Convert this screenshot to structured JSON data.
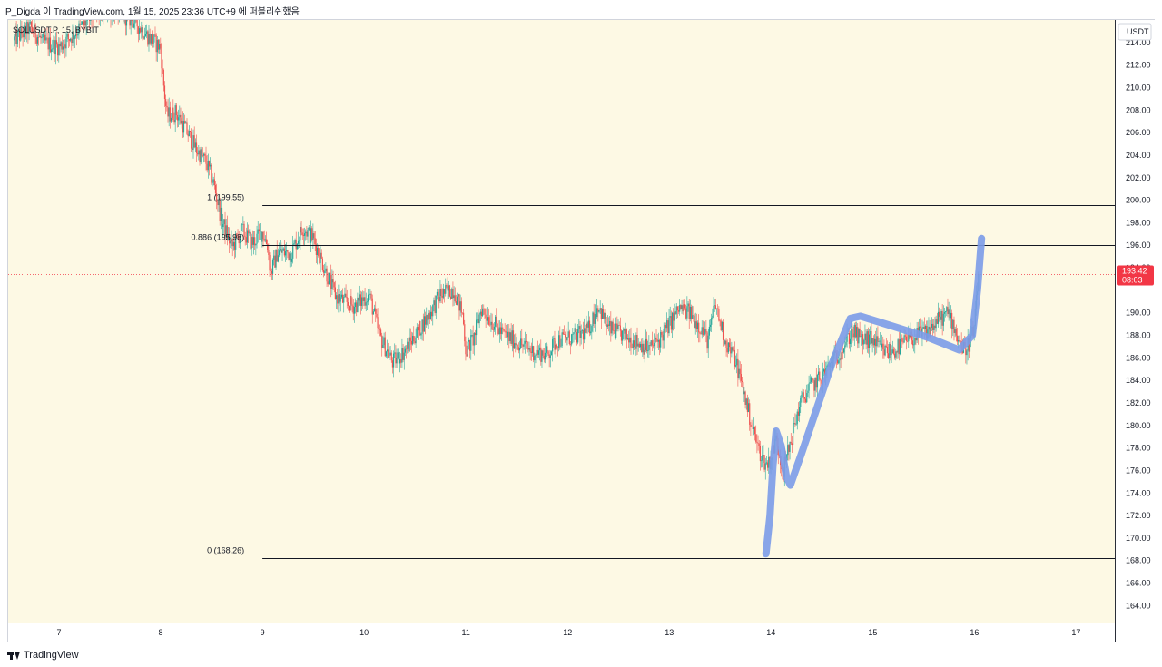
{
  "header": {
    "publish_line": "P_Digda 이 TradingView.com, 1월 15, 2025 23:36 UTC+9 에 퍼블리쉬했음"
  },
  "footer": {
    "brand": "TradingView"
  },
  "colors": {
    "background": "#fdf9e4",
    "up": "#26a69a",
    "down": "#ef5350",
    "wick": "#2a2e39",
    "fib_line": "#131722",
    "current_price": "#f23645",
    "drawing": "#7b9be8"
  },
  "chart_data": {
    "type": "candlestick",
    "symbol_label": "SOLUSDT.P, 15, BYBIT",
    "currency": "USDT",
    "ylim": [
      162.5,
      216
    ],
    "xlim": [
      6.5,
      17.38
    ],
    "x_ticks": [
      {
        "x": 7,
        "label": "7"
      },
      {
        "x": 8,
        "label": "8"
      },
      {
        "x": 9,
        "label": "9"
      },
      {
        "x": 10,
        "label": "10"
      },
      {
        "x": 11,
        "label": "11"
      },
      {
        "x": 12,
        "label": "12"
      },
      {
        "x": 13,
        "label": "13"
      },
      {
        "x": 14,
        "label": "14"
      },
      {
        "x": 15,
        "label": "15"
      },
      {
        "x": 16,
        "label": "16"
      },
      {
        "x": 17,
        "label": "17"
      }
    ],
    "y_ticks": [
      {
        "v": 214,
        "label": "214.00"
      },
      {
        "v": 212,
        "label": "212.00"
      },
      {
        "v": 210,
        "label": "210.00"
      },
      {
        "v": 208,
        "label": "208.00"
      },
      {
        "v": 206,
        "label": "206.00"
      },
      {
        "v": 204,
        "label": "204.00"
      },
      {
        "v": 202,
        "label": "202.00"
      },
      {
        "v": 200,
        "label": "200.00"
      },
      {
        "v": 198,
        "label": "198.00"
      },
      {
        "v": 196,
        "label": "196.00"
      },
      {
        "v": 194,
        "label": "194.00"
      },
      {
        "v": 190,
        "label": "190.00"
      },
      {
        "v": 188,
        "label": "188.00"
      },
      {
        "v": 186,
        "label": "186.00"
      },
      {
        "v": 184,
        "label": "184.00"
      },
      {
        "v": 182,
        "label": "182.00"
      },
      {
        "v": 180,
        "label": "180.00"
      },
      {
        "v": 178,
        "label": "178.00"
      },
      {
        "v": 176,
        "label": "176.00"
      },
      {
        "v": 174,
        "label": "174.00"
      },
      {
        "v": 172,
        "label": "172.00"
      },
      {
        "v": 170,
        "label": "170.00"
      },
      {
        "v": 168,
        "label": "168.00"
      },
      {
        "v": 166,
        "label": "166.00"
      },
      {
        "v": 164,
        "label": "164.00"
      }
    ],
    "fib_levels": [
      {
        "price": 199.55,
        "label": "1 (199.55)",
        "x_start": 9.0
      },
      {
        "price": 195.98,
        "label": "0.886 (195.98)",
        "x_start": 9.0
      },
      {
        "price": 168.26,
        "label": "0 (168.26)",
        "x_start": 9.0
      }
    ],
    "current_price": {
      "price": 193.42,
      "label": "193.42",
      "countdown": "08:03"
    },
    "price_path": [
      [
        6.55,
        214.2
      ],
      [
        6.72,
        215.3
      ],
      [
        6.85,
        214.0
      ],
      [
        7.0,
        213.6
      ],
      [
        7.15,
        214.8
      ],
      [
        7.35,
        216.5
      ],
      [
        7.55,
        216.8
      ],
      [
        7.75,
        215.8
      ],
      [
        7.88,
        214.5
      ],
      [
        8.0,
        213.5
      ],
      [
        8.02,
        211.0
      ],
      [
        8.06,
        207.5
      ],
      [
        8.15,
        207.8
      ],
      [
        8.25,
        206.2
      ],
      [
        8.35,
        204.5
      ],
      [
        8.45,
        203.3
      ],
      [
        8.52,
        201.5
      ],
      [
        8.6,
        198.2
      ],
      [
        8.7,
        195.8
      ],
      [
        8.8,
        197.3
      ],
      [
        8.9,
        196.2
      ],
      [
        9.0,
        197.2
      ],
      [
        9.05,
        196.0
      ],
      [
        9.08,
        193.5
      ],
      [
        9.15,
        195.4
      ],
      [
        9.28,
        195.3
      ],
      [
        9.4,
        197.6
      ],
      [
        9.5,
        196.6
      ],
      [
        9.6,
        194.2
      ],
      [
        9.72,
        191.5
      ],
      [
        9.8,
        191.0
      ],
      [
        9.9,
        190.6
      ],
      [
        10.05,
        191.6
      ],
      [
        10.15,
        188.0
      ],
      [
        10.28,
        185.6
      ],
      [
        10.4,
        186.6
      ],
      [
        10.5,
        188.0
      ],
      [
        10.62,
        189.6
      ],
      [
        10.75,
        191.6
      ],
      [
        10.88,
        192.1
      ],
      [
        10.97,
        189.8
      ],
      [
        11.0,
        186.6
      ],
      [
        11.08,
        187.8
      ],
      [
        11.15,
        190.4
      ],
      [
        11.25,
        189.3
      ],
      [
        11.35,
        188.2
      ],
      [
        11.5,
        187.4
      ],
      [
        11.65,
        186.6
      ],
      [
        11.8,
        186.3
      ],
      [
        11.9,
        187.6
      ],
      [
        12.05,
        187.8
      ],
      [
        12.2,
        188.4
      ],
      [
        12.3,
        190.7
      ],
      [
        12.4,
        188.6
      ],
      [
        12.55,
        188.0
      ],
      [
        12.7,
        187.3
      ],
      [
        12.8,
        186.8
      ],
      [
        12.9,
        187.6
      ],
      [
        13.0,
        189.0
      ],
      [
        13.1,
        190.4
      ],
      [
        13.2,
        190.0
      ],
      [
        13.3,
        188.8
      ],
      [
        13.38,
        187.5
      ],
      [
        13.45,
        190.8
      ],
      [
        13.55,
        187.5
      ],
      [
        13.65,
        185.8
      ],
      [
        13.72,
        183.4
      ],
      [
        13.8,
        180.4
      ],
      [
        13.88,
        177.8
      ],
      [
        13.95,
        176.5
      ],
      [
        14.0,
        177.0
      ],
      [
        14.05,
        178.8
      ],
      [
        14.12,
        176.0
      ],
      [
        14.2,
        178.8
      ],
      [
        14.28,
        181.8
      ],
      [
        14.38,
        183.4
      ],
      [
        14.5,
        184.3
      ],
      [
        14.6,
        185.6
      ],
      [
        14.7,
        186.8
      ],
      [
        14.8,
        188.4
      ],
      [
        14.88,
        187.6
      ],
      [
        15.0,
        187.6
      ],
      [
        15.1,
        186.6
      ],
      [
        15.2,
        186.6
      ],
      [
        15.35,
        187.6
      ],
      [
        15.45,
        188.0
      ],
      [
        15.55,
        188.4
      ],
      [
        15.65,
        189.4
      ],
      [
        15.75,
        190.0
      ],
      [
        15.83,
        188.0
      ],
      [
        15.9,
        186.6
      ],
      [
        15.95,
        187.4
      ],
      [
        16.0,
        188.6
      ],
      [
        16.04,
        193.42
      ]
    ],
    "drawing_path": [
      [
        13.95,
        168.6
      ],
      [
        13.99,
        172.0
      ],
      [
        14.02,
        176.5
      ],
      [
        14.05,
        179.5
      ],
      [
        14.1,
        178.2
      ],
      [
        14.15,
        175.5
      ],
      [
        14.19,
        174.7
      ],
      [
        14.3,
        177.5
      ],
      [
        14.45,
        181.5
      ],
      [
        14.6,
        185.5
      ],
      [
        14.78,
        189.5
      ],
      [
        14.88,
        189.7
      ],
      [
        15.2,
        188.8
      ],
      [
        15.55,
        187.8
      ],
      [
        15.85,
        186.7
      ],
      [
        15.98,
        188.0
      ],
      [
        16.03,
        192.0
      ],
      [
        16.07,
        196.6
      ]
    ]
  }
}
